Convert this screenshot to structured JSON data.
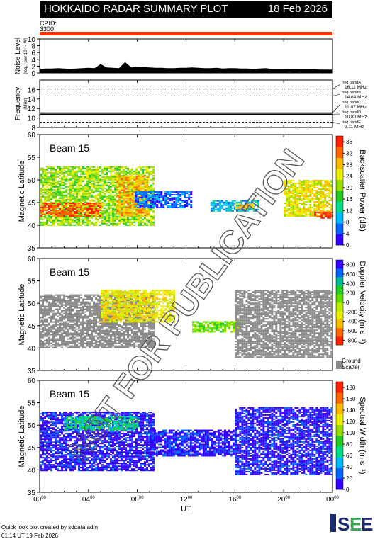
{
  "header": {
    "title": "HOKKAIDO RADAR SUMMARY PLOT",
    "date": "18 Feb 2026",
    "cpid_label": "CPID:",
    "cpid_value": "3300",
    "cpid_color": "#ff3300"
  },
  "watermark": "NOT FOR PUBLICATION",
  "footer": {
    "line1": "Quick look plot created by sddata.adm",
    "line2": "01:14 UT 19 Feb 2026",
    "logo_text": "ISEE"
  },
  "chart_data": [
    {
      "type": "area",
      "name": "noise",
      "ylabel": "Noise Level",
      "ylabel_sub": "(log₁₀ pwr 10⁻¹⁴ W)",
      "ylim": [
        0,
        10
      ],
      "yticks": [
        "0",
        "2",
        "4",
        "6",
        "8",
        "10"
      ],
      "x": [
        0,
        0.5,
        1,
        1.5,
        2,
        2.5,
        3,
        3.5,
        4,
        4.5,
        5,
        5.5,
        6,
        6.5,
        7,
        7.5,
        8,
        8.5,
        9,
        9.5,
        10,
        10.5,
        11,
        11.5,
        12,
        12.5,
        13,
        13.5,
        14,
        14.5,
        15,
        15.5,
        16,
        16.5,
        17,
        17.5,
        18,
        18.5,
        19,
        19.5,
        20,
        20.5,
        21,
        21.5,
        22,
        22.5,
        23,
        23.5,
        24
      ],
      "values": [
        1.2,
        1.3,
        1.3,
        1.4,
        1.3,
        1.2,
        1.3,
        1.4,
        1.5,
        1.4,
        2.6,
        1.6,
        1.5,
        1.4,
        3.2,
        1.6,
        1.8,
        1.7,
        1.6,
        1.5,
        1.5,
        1.4,
        1.4,
        1.5,
        1.5,
        1.6,
        1.5,
        1.4,
        1.4,
        1.5,
        1.3,
        1.4,
        1.4,
        1.3,
        1.3,
        1.2,
        1.3,
        1.4,
        1.2,
        1.2,
        1.2,
        1.1,
        1.2,
        1.1,
        1.1,
        1.1,
        1.0,
        1.0,
        1.0
      ]
    },
    {
      "type": "line",
      "name": "frequency",
      "ylabel": "Frequency",
      "ylabel_sub": "(MHz)",
      "ylim": [
        8,
        18
      ],
      "yticks": [
        "8",
        "10",
        "12",
        "14",
        "16"
      ],
      "x_range": [
        0,
        24
      ],
      "series": [
        {
          "name": "freq bandA",
          "label": "freq bandA",
          "value_label": "16.11 MHz",
          "y": 16.11,
          "style": "dashed"
        },
        {
          "name": "freq bandB",
          "label": "freq bandB",
          "value_label": "14.64 MHz",
          "y": 14.64,
          "style": "dashed"
        },
        {
          "name": "freq bandC",
          "label": "freq bandC",
          "value_label": "11.07 MHz",
          "y": 11.07,
          "style": "solid"
        },
        {
          "name": "freq bandD",
          "label": "freq bandD",
          "value_label": "10.80 MHz",
          "y": 10.8,
          "style": "solid"
        },
        {
          "name": "freq bandE",
          "label": "freq bandE",
          "value_label": "9.11 MHz",
          "y": 9.11,
          "style": "dashed"
        }
      ]
    },
    {
      "type": "heatmap",
      "name": "power",
      "beam_label": "Beam 15",
      "ylabel": "Magnetic Latitude",
      "ylim": [
        35,
        60
      ],
      "yticks": [
        "35",
        "40",
        "45",
        "50",
        "55",
        "60"
      ],
      "colorbar_label": "Backscatter Power (dB)",
      "colorbar_ticks": [
        "0",
        "4",
        "8",
        "12",
        "16",
        "20",
        "24",
        "28",
        "32",
        "36"
      ],
      "colorbar_range": [
        0,
        38
      ],
      "colors": [
        "#3300ff",
        "#0066ff",
        "#00bbff",
        "#00dd88",
        "#22cc22",
        "#99dd00",
        "#eeee00",
        "#ffbb00",
        "#ff6600",
        "#ff2200"
      ],
      "ground_scatter": false,
      "regions": [
        {
          "x": [
            0,
            9.3
          ],
          "y": [
            40,
            53
          ],
          "color_index": 5
        },
        {
          "x": [
            0,
            5
          ],
          "y": [
            42,
            45
          ],
          "color_index": 8
        },
        {
          "x": [
            6.3,
            8.8
          ],
          "y": [
            42,
            51
          ],
          "color_index": 7
        },
        {
          "x": [
            7.8,
            12.5
          ],
          "y": [
            44,
            47.5
          ],
          "color_index": 1
        },
        {
          "x": [
            14,
            18
          ],
          "y": [
            43,
            45.5
          ],
          "color_index": 2
        },
        {
          "x": [
            16,
            17.5
          ],
          "y": [
            43.8,
            44.8
          ],
          "color_index": 7
        },
        {
          "x": [
            20,
            24
          ],
          "y": [
            42,
            50
          ],
          "color_index": 6
        },
        {
          "x": [
            22.5,
            24
          ],
          "y": [
            41.5,
            43
          ],
          "color_index": 9
        }
      ]
    },
    {
      "type": "heatmap",
      "name": "velocity",
      "beam_label": "Beam 15",
      "ylabel": "Magnetic Latitude",
      "ylim": [
        35,
        60
      ],
      "yticks": [
        "35",
        "40",
        "45",
        "50",
        "55",
        "60"
      ],
      "colorbar_label": "Doppler Velocity (m s⁻¹)",
      "colorbar_ticks": [
        "-800",
        "-600",
        "-400",
        "-200",
        "0",
        "200",
        "400",
        "600",
        "800"
      ],
      "colorbar_range": [
        -900,
        900
      ],
      "colors": [
        "#ff2200",
        "#ff6600",
        "#ffbb00",
        "#eeee00",
        "#bbee00",
        "#66dd00",
        "#22cc22",
        "#00bb99",
        "#0066ff",
        "#3300ff"
      ],
      "ground_scatter": true,
      "ground_scatter_label": [
        "Ground",
        "Scatter"
      ],
      "ground_scatter_color": "#888888",
      "regions": [
        {
          "x": [
            0,
            9.3
          ],
          "y": [
            40,
            52
          ],
          "color_index": -1
        },
        {
          "x": [
            12.5,
            16.5
          ],
          "y": [
            43.5,
            46
          ],
          "color_index": 5
        },
        {
          "x": [
            16,
            24
          ],
          "y": [
            38,
            53
          ],
          "color_index": -1
        },
        {
          "x": [
            5,
            11
          ],
          "y": [
            46,
            53
          ],
          "color_index": 3
        }
      ]
    },
    {
      "type": "heatmap",
      "name": "width",
      "beam_label": "Beam 15",
      "ylabel": "Magnetic Latitude",
      "ylim": [
        35,
        60
      ],
      "yticks": [
        "35",
        "40",
        "45",
        "50",
        "55",
        "60"
      ],
      "colorbar_label": "Spectral Width (m s⁻¹)",
      "colorbar_ticks": [
        "0",
        "20",
        "40",
        "60",
        "80",
        "100",
        "120",
        "140",
        "160",
        "180"
      ],
      "colorbar_range": [
        0,
        190
      ],
      "colors": [
        "#3300ff",
        "#0066ff",
        "#00bbff",
        "#00dd88",
        "#22cc22",
        "#99dd00",
        "#eeee00",
        "#ffbb00",
        "#ff6600",
        "#ff2200"
      ],
      "ground_scatter": false,
      "regions": [
        {
          "x": [
            0,
            9.3
          ],
          "y": [
            40,
            53
          ],
          "color_index": 0
        },
        {
          "x": [
            9,
            16
          ],
          "y": [
            43,
            49
          ],
          "color_index": 0
        },
        {
          "x": [
            16,
            24
          ],
          "y": [
            39,
            54
          ],
          "color_index": 0
        },
        {
          "x": [
            2,
            8
          ],
          "y": [
            49,
            52
          ],
          "color_index": 3
        }
      ]
    }
  ],
  "x_axis": {
    "label": "UT",
    "ticks": [
      {
        "hour": 0,
        "label": "00",
        "sup": "00"
      },
      {
        "hour": 4,
        "label": "04",
        "sup": "00"
      },
      {
        "hour": 8,
        "label": "08",
        "sup": "00"
      },
      {
        "hour": 12,
        "label": "12",
        "sup": "00"
      },
      {
        "hour": 16,
        "label": "16",
        "sup": "00"
      },
      {
        "hour": 20,
        "label": "20",
        "sup": "00"
      },
      {
        "hour": 24,
        "label": "00",
        "sup": "00"
      }
    ]
  }
}
